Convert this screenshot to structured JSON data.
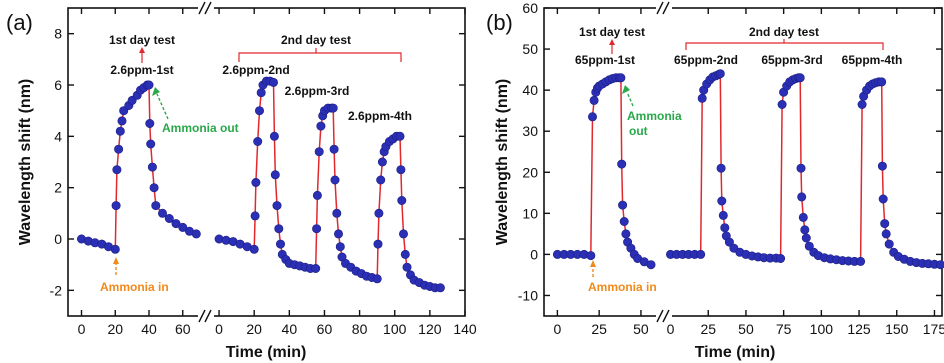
{
  "chart_data": [
    {
      "type": "scatter",
      "panel_label": "(a)",
      "xlabel": "Time (min)",
      "ylabel": "Wavelength shift (nm)",
      "ylim": [
        -3,
        9
      ],
      "yticks": [
        "-2",
        "0",
        "2",
        "4",
        "6",
        "8"
      ],
      "segments": [
        {
          "xlim": [
            -8,
            72
          ],
          "xticks": [
            "0",
            "20",
            "40",
            "60"
          ]
        },
        {
          "xlim": [
            -8,
            140
          ],
          "xticks": [
            "0",
            "20",
            "40",
            "60",
            "80",
            "100",
            "120",
            "140"
          ]
        }
      ],
      "marker_color": "#2b2fb5",
      "line_color": "#e0282e",
      "series": [
        {
          "segment": 0,
          "points": [
            [
              0,
              0
            ],
            [
              4,
              -0.08
            ],
            [
              8,
              -0.15
            ],
            [
              12,
              -0.2
            ],
            [
              16,
              -0.3
            ],
            [
              20,
              -0.4
            ],
            [
              20.5,
              1.3
            ],
            [
              21,
              2.7
            ],
            [
              22,
              3.5
            ],
            [
              23,
              4.2
            ],
            [
              24,
              4.6
            ],
            [
              25,
              5.0
            ],
            [
              28,
              5.2
            ],
            [
              30,
              5.4
            ],
            [
              33,
              5.6
            ],
            [
              35,
              5.8
            ],
            [
              37,
              5.9
            ],
            [
              39,
              6.0
            ],
            [
              40,
              6.0
            ],
            [
              40.5,
              4.5
            ],
            [
              41,
              3.7
            ],
            [
              42,
              2.8
            ],
            [
              43,
              2.0
            ],
            [
              44,
              1.3
            ],
            [
              48,
              1.0
            ],
            [
              52,
              0.8
            ],
            [
              56,
              0.6
            ],
            [
              60,
              0.45
            ],
            [
              64,
              0.3
            ],
            [
              68,
              0.2
            ]
          ]
        },
        {
          "segment": 1,
          "points": [
            [
              0,
              0
            ],
            [
              4,
              -0.05
            ],
            [
              8,
              -0.1
            ],
            [
              12,
              -0.2
            ],
            [
              16,
              -0.3
            ],
            [
              20,
              -0.4
            ],
            [
              20.5,
              0.9
            ],
            [
              21,
              2.2
            ],
            [
              22,
              3.8
            ],
            [
              23,
              5.0
            ],
            [
              24,
              5.7
            ],
            [
              25,
              6.0
            ],
            [
              27,
              6.15
            ],
            [
              29,
              6.15
            ],
            [
              31,
              6.1
            ],
            [
              31.5,
              4.0
            ],
            [
              32,
              2.5
            ],
            [
              33,
              1.3
            ],
            [
              34,
              0.4
            ],
            [
              35,
              -0.2
            ],
            [
              36,
              -0.6
            ],
            [
              38,
              -0.8
            ],
            [
              40,
              -0.95
            ],
            [
              43,
              -1.0
            ],
            [
              46,
              -1.05
            ],
            [
              49,
              -1.1
            ],
            [
              52,
              -1.15
            ],
            [
              55,
              -1.15
            ],
            [
              55.5,
              0.4
            ],
            [
              56,
              1.7
            ],
            [
              57,
              3.4
            ],
            [
              58,
              4.4
            ],
            [
              59,
              4.8
            ],
            [
              60,
              5.0
            ],
            [
              62,
              5.1
            ],
            [
              64,
              5.1
            ],
            [
              65,
              5.1
            ],
            [
              65.5,
              3.5
            ],
            [
              66,
              2.3
            ],
            [
              67,
              1.0
            ],
            [
              68,
              0.2
            ],
            [
              69,
              -0.3
            ],
            [
              70,
              -0.7
            ],
            [
              72,
              -0.95
            ],
            [
              75,
              -1.1
            ],
            [
              78,
              -1.25
            ],
            [
              81,
              -1.35
            ],
            [
              84,
              -1.45
            ],
            [
              87,
              -1.5
            ],
            [
              90,
              -1.55
            ],
            [
              90.5,
              -0.2
            ],
            [
              91,
              1.0
            ],
            [
              92,
              2.3
            ],
            [
              93,
              3.0
            ],
            [
              94,
              3.4
            ],
            [
              95,
              3.6
            ],
            [
              97,
              3.8
            ],
            [
              99,
              3.9
            ],
            [
              101,
              4.0
            ],
            [
              103,
              4.0
            ],
            [
              103.5,
              2.7
            ],
            [
              104,
              1.5
            ],
            [
              105,
              0.2
            ],
            [
              106,
              -0.6
            ],
            [
              107,
              -1.1
            ],
            [
              109,
              -1.4
            ],
            [
              111,
              -1.6
            ],
            [
              114,
              -1.7
            ],
            [
              117,
              -1.8
            ],
            [
              120,
              -1.85
            ],
            [
              123,
              -1.9
            ],
            [
              126,
              -1.9
            ]
          ]
        }
      ],
      "annotations": {
        "first_day": "1st day test",
        "second_day": "2nd day test",
        "run1": "2.6ppm-1st",
        "run2": "2.6ppm-2nd",
        "run3": "2.6ppm-3rd",
        "run4": "2.6ppm-4th",
        "ammonia_out": "Ammonia out",
        "ammonia_in": "Ammonia in"
      }
    },
    {
      "type": "scatter",
      "panel_label": "(b)",
      "xlabel": "Time (min)",
      "ylabel": "Wavelength shift (nm)",
      "ylim": [
        -15,
        60
      ],
      "yticks": [
        "-10",
        "0",
        "10",
        "20",
        "30",
        "40",
        "50",
        "60"
      ],
      "segments": [
        {
          "xlim": [
            -8,
            62
          ],
          "xticks": [
            "0",
            "25",
            "50"
          ]
        },
        {
          "xlim": [
            -5,
            180
          ],
          "xticks": [
            "0",
            "25",
            "50",
            "75",
            "100",
            "125",
            "150",
            "175"
          ]
        }
      ],
      "marker_color": "#2b2fb5",
      "line_color": "#e0282e",
      "series": [
        {
          "segment": 0,
          "points": [
            [
              0,
              0
            ],
            [
              4,
              0
            ],
            [
              8,
              0
            ],
            [
              12,
              0
            ],
            [
              16,
              0
            ],
            [
              20,
              -0.3
            ],
            [
              21,
              33.5
            ],
            [
              22,
              37.5
            ],
            [
              23,
              39.5
            ],
            [
              24,
              40.5
            ],
            [
              25,
              41
            ],
            [
              27,
              41.5
            ],
            [
              29,
              42
            ],
            [
              31,
              42.5
            ],
            [
              33,
              42.8
            ],
            [
              35,
              43
            ],
            [
              37,
              43
            ],
            [
              38,
              43
            ],
            [
              38.5,
              22
            ],
            [
              39,
              12
            ],
            [
              40,
              8
            ],
            [
              41,
              5
            ],
            [
              42,
              3
            ],
            [
              44,
              1.5
            ],
            [
              46,
              0
            ],
            [
              48,
              -1
            ],
            [
              52,
              -1.8
            ],
            [
              56,
              -2.5
            ]
          ]
        },
        {
          "segment": 1,
          "points": [
            [
              0,
              0
            ],
            [
              4,
              0
            ],
            [
              8,
              0
            ],
            [
              12,
              0
            ],
            [
              16,
              0
            ],
            [
              20,
              0
            ],
            [
              21,
              38
            ],
            [
              22,
              40
            ],
            [
              24,
              41.5
            ],
            [
              26,
              42.5
            ],
            [
              28,
              43.2
            ],
            [
              30,
              43.5
            ],
            [
              32,
              43.8
            ],
            [
              33,
              44
            ],
            [
              33.5,
              21
            ],
            [
              34,
              13
            ],
            [
              35,
              9.5
            ],
            [
              36,
              6.5
            ],
            [
              37,
              4.5
            ],
            [
              39,
              3
            ],
            [
              42,
              1.5
            ],
            [
              46,
              0.5
            ],
            [
              50,
              0
            ],
            [
              54,
              -0.4
            ],
            [
              58,
              -0.6
            ],
            [
              62,
              -0.8
            ],
            [
              66,
              -0.9
            ],
            [
              70,
              -0.9
            ],
            [
              73,
              -1
            ],
            [
              74,
              36.5
            ],
            [
              75,
              39.5
            ],
            [
              77,
              41
            ],
            [
              79,
              42
            ],
            [
              81,
              42.5
            ],
            [
              83,
              42.8
            ],
            [
              85,
              43
            ],
            [
              86,
              43
            ],
            [
              86.5,
              21
            ],
            [
              87,
              14
            ],
            [
              88,
              9
            ],
            [
              89,
              6
            ],
            [
              90,
              4
            ],
            [
              92,
              2
            ],
            [
              95,
              0.5
            ],
            [
              98,
              -0.3
            ],
            [
              102,
              -0.8
            ],
            [
              106,
              -1.1
            ],
            [
              110,
              -1.3
            ],
            [
              114,
              -1.5
            ],
            [
              118,
              -1.6
            ],
            [
              122,
              -1.7
            ],
            [
              126,
              -1.7
            ],
            [
              127,
              36.5
            ],
            [
              128,
              38.5
            ],
            [
              130,
              40
            ],
            [
              132,
              41
            ],
            [
              134,
              41.5
            ],
            [
              136,
              41.8
            ],
            [
              138,
              42
            ],
            [
              140,
              42
            ],
            [
              140.5,
              21.5
            ],
            [
              141,
              13.5
            ],
            [
              142,
              7.5
            ],
            [
              143,
              5
            ],
            [
              145,
              2.5
            ],
            [
              148,
              0.5
            ],
            [
              151,
              -0.5
            ],
            [
              155,
              -1.2
            ],
            [
              159,
              -1.7
            ],
            [
              163,
              -2
            ],
            [
              167,
              -2.2
            ],
            [
              171,
              -2.3
            ],
            [
              175,
              -2.4
            ],
            [
              179,
              -2.5
            ]
          ]
        }
      ],
      "annotations": {
        "first_day": "1st day test",
        "second_day": "2nd day test",
        "run1": "65ppm-1st",
        "run2": "65ppm-2nd",
        "run3": "65ppm-3rd",
        "run4": "65ppm-4th",
        "ammonia_out_1": "Ammonia",
        "ammonia_out_2": "out",
        "ammonia_in": "Ammonia in"
      }
    }
  ]
}
